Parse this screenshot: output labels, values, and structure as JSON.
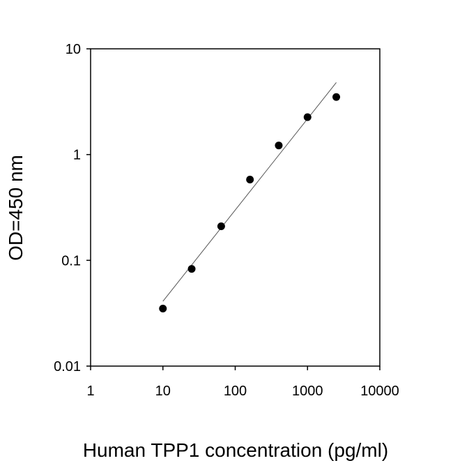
{
  "chart_data": {
    "type": "scatter",
    "x_label": "Human TPP1 concentration (pg/ml)",
    "y_label": "OD=450 nm",
    "x": [
      10,
      25,
      64,
      160,
      400,
      1000,
      2500
    ],
    "values": [
      0.035,
      0.083,
      0.21,
      0.58,
      1.22,
      2.26,
      3.5
    ],
    "color": "#000000",
    "fit": {
      "x": [
        10,
        2500
      ],
      "values": [
        0.041,
        4.8
      ],
      "color": "#555555"
    },
    "xlog": true,
    "ylog": true,
    "xlim": [
      1,
      10000
    ],
    "ylim": [
      0.01,
      10
    ],
    "xticks": [
      1,
      10,
      100,
      1000,
      10000
    ],
    "yticks": [
      0.01,
      0.1,
      1,
      10
    ],
    "grid": false
  }
}
